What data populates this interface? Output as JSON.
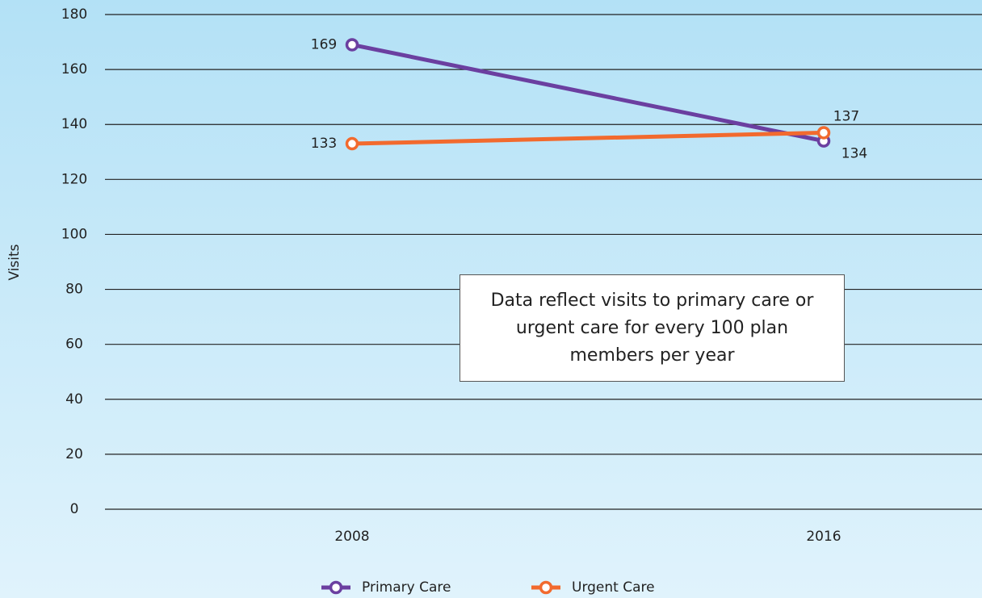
{
  "chart_data": {
    "type": "line",
    "y_label": "Visits",
    "categories": [
      "2008",
      "2016"
    ],
    "series": [
      {
        "name": "Primary Care",
        "color": "#6b3fa0",
        "values": [
          169,
          134
        ]
      },
      {
        "name": "Urgent Care",
        "color": "#f26a2e",
        "values": [
          133,
          137
        ]
      }
    ],
    "ylim": [
      0,
      180
    ],
    "yticks": [
      0,
      20,
      40,
      60,
      80,
      100,
      120,
      140,
      160,
      180
    ],
    "grid": true,
    "legend": "bottom",
    "annotation": "Data reflect visits to primary care or urgent care for every 100 plan members per year"
  }
}
